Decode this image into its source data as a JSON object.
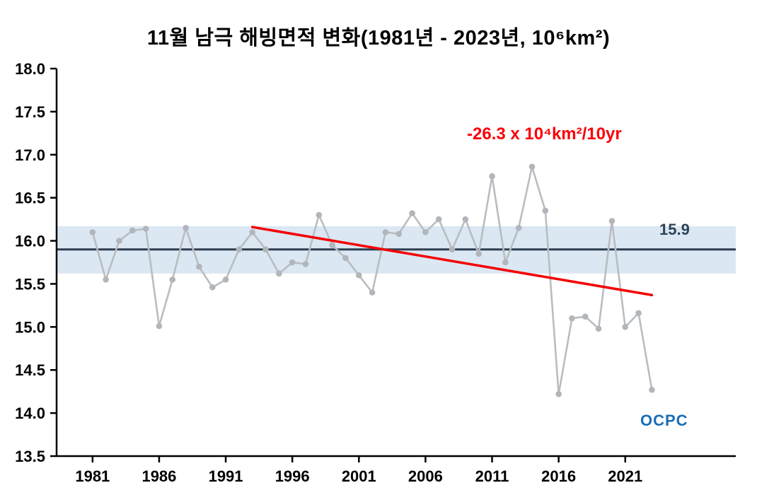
{
  "title": "11월 남극 해빙면적 변화(1981년 - 2023년, 10⁶km²)",
  "annotation": {
    "text": "-26.3 x 10⁴km²/10yr"
  },
  "mean_label": "15.9",
  "logo_text": "OCPC",
  "chart_data": {
    "type": "line",
    "title": "11월 남극 해빙면적 변화(1981년 - 2023년, 10⁶km²)",
    "xlabel": "",
    "ylabel": "",
    "x": [
      1981,
      1982,
      1983,
      1984,
      1985,
      1986,
      1987,
      1988,
      1989,
      1990,
      1991,
      1992,
      1993,
      1994,
      1995,
      1996,
      1997,
      1998,
      1999,
      2000,
      2001,
      2002,
      2003,
      2004,
      2005,
      2006,
      2007,
      2008,
      2009,
      2010,
      2011,
      2012,
      2013,
      2014,
      2015,
      2016,
      2017,
      2018,
      2019,
      2020,
      2021,
      2022,
      2023
    ],
    "values": [
      16.1,
      15.55,
      16.0,
      16.12,
      16.14,
      15.01,
      15.55,
      16.15,
      15.7,
      15.46,
      15.55,
      15.9,
      16.1,
      15.9,
      15.62,
      15.75,
      15.73,
      16.3,
      15.95,
      15.8,
      15.6,
      15.4,
      16.1,
      16.08,
      16.32,
      16.1,
      16.25,
      15.9,
      16.25,
      15.85,
      16.75,
      15.75,
      16.15,
      16.86,
      16.35,
      14.22,
      15.1,
      15.12,
      14.98,
      16.23,
      15.0,
      15.16,
      14.27
    ],
    "mean": 15.9,
    "band": {
      "low": 15.62,
      "high": 16.17
    },
    "trend": {
      "x1": 1993,
      "y1": 16.16,
      "x2": 2023,
      "y2": 15.37,
      "rate_label": "-26.3 x 10⁴km²/10yr"
    },
    "xlim": [
      1978.3,
      2029.3
    ],
    "ylim": [
      13.5,
      18.0
    ],
    "xticks": [
      1981,
      1986,
      1991,
      1996,
      2001,
      2006,
      2011,
      2016,
      2021
    ],
    "yticks": [
      13.5,
      14.0,
      14.5,
      15.0,
      15.5,
      16.0,
      16.5,
      17.0,
      17.5,
      18.0
    ],
    "grid": false,
    "legend": "none",
    "colors": {
      "series": "#b9bdc1",
      "marker": "#b2b6ba",
      "mean_line": "#2e3e50",
      "band": "#dbe7f3",
      "trend": "#f40000",
      "annotation": "#fb0006",
      "axis": "#000000",
      "mean_label": "#2f4458",
      "logo": "#1a6db5"
    }
  }
}
